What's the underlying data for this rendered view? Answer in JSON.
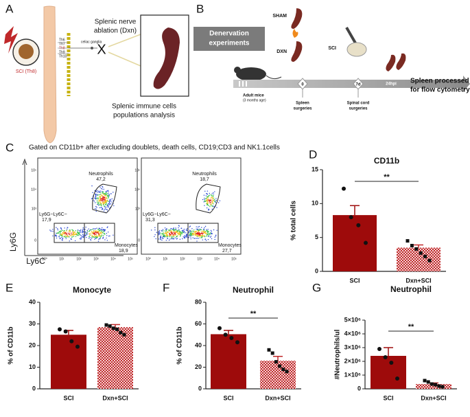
{
  "panel_a": {
    "letter": "A",
    "injury": "SCI (Th8)",
    "ganglia": "celiac ganglia",
    "vertebrae": [
      "Th6",
      "Th7",
      "Th8",
      "Th9",
      "Th10"
    ],
    "ablation": [
      "Splenic nerve",
      "ablation (Dxn)"
    ],
    "cross": "X",
    "analysis": [
      "Splenic immune cells",
      "populations analysis"
    ]
  },
  "panel_b": {
    "letter": "B",
    "box": [
      "Denervation",
      "experiments"
    ],
    "sham": "SHAM",
    "dxn": "DXN",
    "sci": "SCI",
    "mice": [
      "Adult mice",
      "(3 months age)"
    ],
    "timepoints": [
      "0",
      "7d",
      "24hpi"
    ],
    "spleen_surgeries": [
      "Spleen",
      "surgeries"
    ],
    "cord_surgeries": [
      "Spinal cord",
      "surgeries"
    ],
    "end": [
      "Spleen processed",
      "for flow cytometry"
    ]
  },
  "panel_c": {
    "letter": "C",
    "caption": "Gated on CD11b+ after excluding doublets, death cells, CD19;CD3 and NK1.1cells",
    "ylabel": "Ly6G",
    "xlabel": "Ly6C",
    "yticks": [
      "10⁵",
      "10⁴",
      "10³",
      "0"
    ],
    "xticks": [
      "10⁰",
      "10¹",
      "10²",
      "10³",
      "10⁴",
      "10⁵"
    ],
    "plots": [
      {
        "neutrophils": "Neutrophils",
        "neutrophil_pct": "47,2",
        "negative": "Ly6G−Ly6C−",
        "negative_pct": "17,9",
        "monocytes": "Monocytes",
        "monocyte_pct": "18,9"
      },
      {
        "neutrophils": "Neutrophils",
        "neutrophil_pct": "18,7",
        "negative": "Ly6G−Ly6C−",
        "negative_pct": "31,3",
        "monocytes": "Monocytes",
        "monocyte_pct": "27,7"
      }
    ]
  },
  "chart_data": [
    {
      "type": "bar",
      "letter": "D",
      "title": "CD11b",
      "ylabel": "% total cells",
      "categories": [
        "SCI",
        "Dxn+SCI"
      ],
      "values": [
        8.3,
        3.5
      ],
      "errors": [
        1.4,
        0.4
      ],
      "points": [
        [
          12.2,
          8.0,
          6.8,
          4.2
        ],
        [
          4.5,
          3.8,
          3.3,
          2.7,
          2.2,
          1.6
        ]
      ],
      "colors": [
        "#9e0b0b",
        "#c0282a"
      ],
      "patterns": [
        "solid",
        "checker"
      ],
      "markers": [
        "circle",
        "square"
      ],
      "significance": "**",
      "ylim": [
        0,
        15
      ],
      "yticks": [
        0,
        5,
        10,
        15
      ]
    },
    {
      "type": "bar",
      "letter": "E",
      "title": "Monocyte",
      "ylabel": "% of CD11b",
      "categories": [
        "SCI",
        "Dxn+SCI"
      ],
      "values": [
        25,
        28.5
      ],
      "errors": [
        2,
        1.2
      ],
      "points": [
        [
          27.5,
          26.5,
          22,
          19.5
        ],
        [
          29.5,
          29,
          28,
          27.5,
          26,
          25
        ]
      ],
      "colors": [
        "#9e0b0b",
        "#c0282a"
      ],
      "patterns": [
        "solid",
        "checker"
      ],
      "markers": [
        "circle",
        "square"
      ],
      "ylim": [
        0,
        40
      ],
      "yticks": [
        0,
        10,
        20,
        30,
        40
      ]
    },
    {
      "type": "bar",
      "letter": "F",
      "title": "Neutrophil",
      "ylabel": "% of CD11b",
      "categories": [
        "SCI",
        "Dxn+SCI"
      ],
      "values": [
        50.5,
        26
      ],
      "errors": [
        3.5,
        4
      ],
      "points": [
        [
          56,
          50,
          47,
          43
        ],
        [
          36,
          33,
          25,
          21,
          18,
          16
        ]
      ],
      "colors": [
        "#9e0b0b",
        "#c0282a"
      ],
      "patterns": [
        "solid",
        "checker"
      ],
      "markers": [
        "circle",
        "square"
      ],
      "significance": "**",
      "ylim": [
        0,
        80
      ],
      "yticks": [
        0,
        20,
        40,
        60,
        80
      ]
    },
    {
      "type": "bar",
      "letter": "G",
      "title": "Neutrophil",
      "ylabel": "#Neutrophils/ul",
      "categories": [
        "SCI",
        "Dxn+SCI"
      ],
      "values": [
        2400000,
        350000
      ],
      "errors": [
        600000,
        80000
      ],
      "points": [
        [
          2900000,
          2300000,
          1900000,
          750000
        ],
        [
          600000,
          500000,
          350000,
          300000,
          200000,
          150000
        ]
      ],
      "colors": [
        "#9e0b0b",
        "#c0282a"
      ],
      "patterns": [
        "solid",
        "checker"
      ],
      "markers": [
        "circle",
        "square"
      ],
      "significance": "**",
      "ylim": [
        0,
        5000000
      ],
      "yticks": [
        0,
        {
          "value": 1000000,
          "label": "1×10⁶"
        },
        {
          "value": 2000000,
          "label": "2×10⁶"
        },
        {
          "value": 3000000,
          "label": "3×10⁶"
        },
        {
          "value": 4000000,
          "label": "4×10⁶"
        },
        {
          "value": 5000000,
          "label": "5×10⁶"
        }
      ]
    }
  ]
}
